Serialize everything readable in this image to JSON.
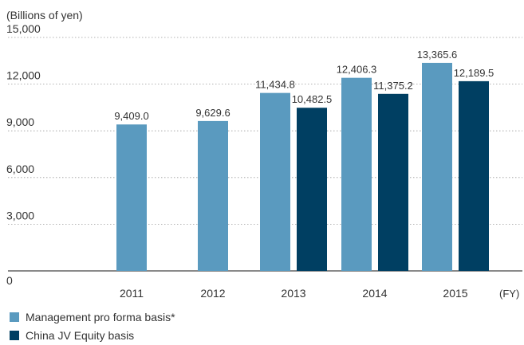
{
  "chart_data": {
    "type": "bar",
    "ylabel": "(Billions of yen)",
    "xlabel": "(FY)",
    "categories": [
      "2011",
      "2012",
      "2013",
      "2014",
      "2015"
    ],
    "yticks": [
      "15,000",
      "12,000",
      "9,000",
      "6,000",
      "3,000",
      "0"
    ],
    "ylim": [
      0,
      15000
    ],
    "grid": true,
    "legend_position": "bottom-left",
    "series": [
      {
        "name": "Management pro forma basis*",
        "color": "#5a9abf",
        "values": [
          9409.0,
          9629.6,
          11434.8,
          12406.3,
          13365.6
        ],
        "labels": [
          "9,409.0",
          "9,629.6",
          "11,434.8",
          "12,406.3",
          "13,365.6"
        ]
      },
      {
        "name": "China JV Equity basis",
        "color": "#003f62",
        "values": [
          null,
          null,
          10482.5,
          11375.2,
          12189.5
        ],
        "labels": [
          "",
          "",
          "10,482.5",
          "11,375.2",
          "12,189.5"
        ]
      }
    ]
  }
}
